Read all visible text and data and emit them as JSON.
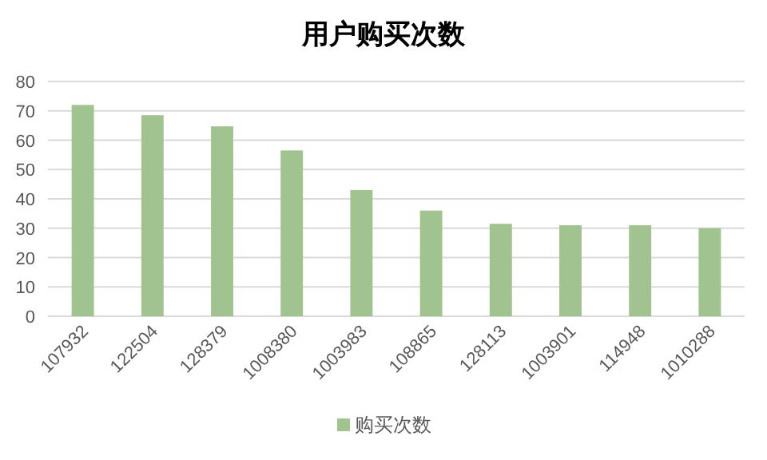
{
  "chart_data": {
    "type": "bar",
    "title": "用户购买次数",
    "categories": [
      "107932",
      "122504",
      "128379",
      "1008380",
      "1003983",
      "108865",
      "128113",
      "1003901",
      "114948",
      "1010288"
    ],
    "series": [
      {
        "name": "购买次数",
        "color": "#a1c38f",
        "values": [
          72,
          68.5,
          64.7,
          56.5,
          43,
          36,
          31.5,
          31,
          31,
          30
        ]
      }
    ],
    "ylim": [
      0,
      80
    ],
    "yticks": [
      0,
      10,
      20,
      30,
      40,
      50,
      60,
      70,
      80
    ],
    "grid": "y",
    "legend": "bottom"
  }
}
